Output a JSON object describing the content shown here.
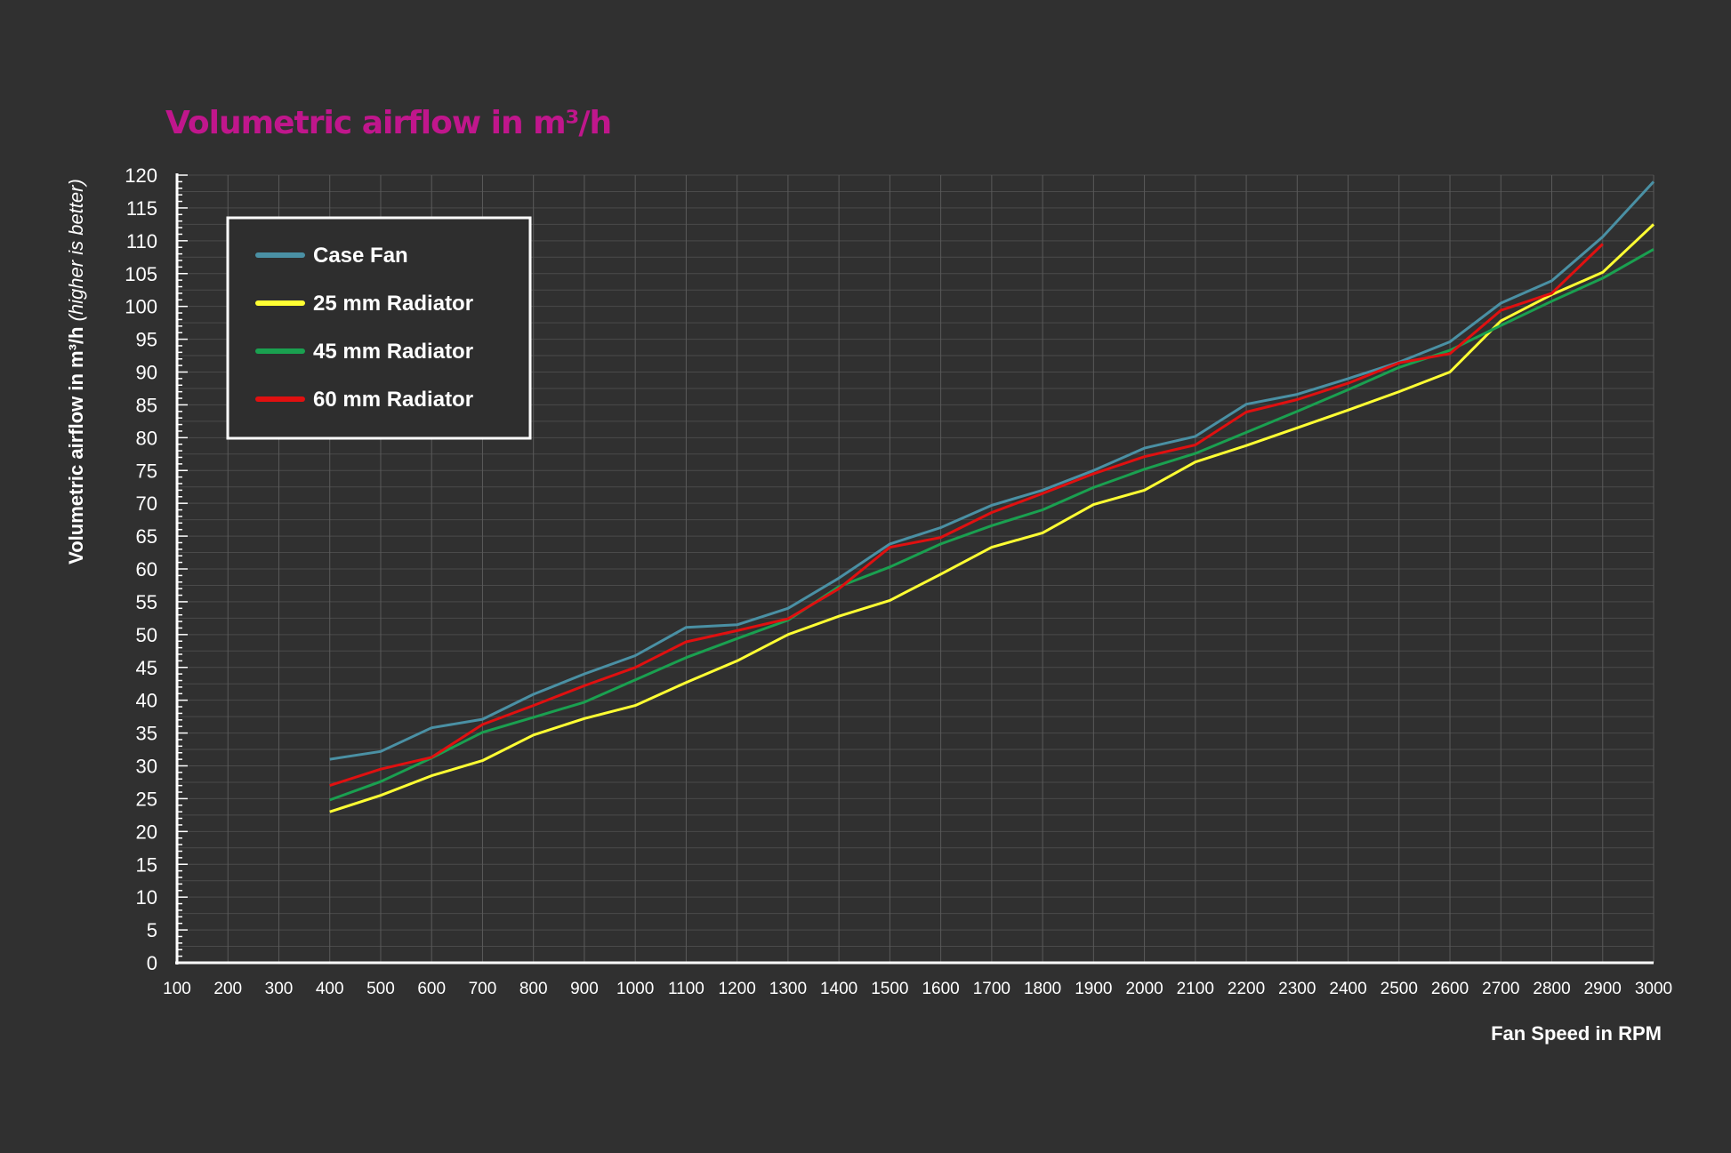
{
  "chart_data": {
    "type": "line",
    "title": "Volumetric airflow in m³/h",
    "xlabel": "Fan Speed in RPM",
    "ylabel_main": "Volumetric airflow in m³/h",
    "ylabel_suffix": "(higher is better)",
    "x": [
      100,
      200,
      300,
      400,
      500,
      600,
      700,
      800,
      900,
      1000,
      1100,
      1200,
      1300,
      1400,
      1500,
      1600,
      1700,
      1800,
      1900,
      2000,
      2100,
      2200,
      2300,
      2400,
      2500,
      2600,
      2700,
      2800,
      2900,
      3000
    ],
    "xlim": [
      100,
      3000
    ],
    "ylim": [
      0,
      120
    ],
    "yticks": [
      0,
      5,
      10,
      15,
      20,
      25,
      30,
      35,
      40,
      45,
      50,
      55,
      60,
      65,
      70,
      75,
      80,
      85,
      90,
      95,
      100,
      105,
      110,
      115,
      120
    ],
    "grid": true,
    "legend_position": "top-left",
    "title_color": "#c0168c",
    "series": [
      {
        "name": "Case Fan",
        "color": "#4a90a4",
        "x": [
          400,
          500,
          600,
          700,
          800,
          900,
          1000,
          1100,
          1200,
          1300,
          1400,
          1500,
          1600,
          1700,
          1800,
          1900,
          2000,
          2100,
          2200,
          2300,
          2400,
          2500,
          2600,
          2700,
          2800,
          2900,
          3000
        ],
        "values": [
          31,
          32.2,
          35.8,
          37.1,
          40.9,
          44,
          46.8,
          51.1,
          51.5,
          54,
          58.6,
          63.8,
          66.3,
          69.7,
          72,
          75,
          78.4,
          80.2,
          85.1,
          86.6,
          89,
          91.5,
          94.6,
          100.5,
          103.9,
          110.6,
          119
        ]
      },
      {
        "name": "25 mm Radiator",
        "color": "#ffff33",
        "x": [
          400,
          500,
          600,
          700,
          800,
          900,
          1000,
          1100,
          1200,
          1300,
          1400,
          1500,
          1600,
          1700,
          1800,
          1900,
          2000,
          2100,
          2200,
          2300,
          2400,
          2500,
          2600,
          2700,
          2800,
          2900,
          3000
        ],
        "values": [
          23,
          25.5,
          28.5,
          30.8,
          34.7,
          37.2,
          39.2,
          42.7,
          46,
          50,
          52.8,
          55.2,
          59.2,
          63.3,
          65.5,
          69.8,
          72,
          76.3,
          78.8,
          81.5,
          84.2,
          87,
          90,
          97.8,
          101.8,
          105.2,
          112.5
        ]
      },
      {
        "name": "45 mm Radiator",
        "color": "#1aa050",
        "x": [
          400,
          500,
          600,
          700,
          800,
          900,
          1000,
          1100,
          1200,
          1300,
          1400,
          1500,
          1600,
          1700,
          1800,
          1900,
          2000,
          2100,
          2200,
          2300,
          2400,
          2500,
          2600,
          2700,
          2800,
          2900,
          3000
        ],
        "values": [
          24.8,
          27.6,
          31.2,
          35.1,
          37.4,
          39.7,
          43.1,
          46.5,
          49.4,
          52.2,
          57.3,
          60.3,
          63.8,
          66.6,
          69,
          72.4,
          75.2,
          77.6,
          80.8,
          84,
          87.3,
          90.7,
          93.3,
          97.1,
          100.8,
          104.3,
          108.7
        ]
      },
      {
        "name": "60 mm Radiator",
        "color": "#e01010",
        "x": [
          400,
          500,
          600,
          700,
          800,
          900,
          1000,
          1100,
          1200,
          1300,
          1400,
          1500,
          1600,
          1700,
          1800,
          1900,
          2000,
          2100,
          2200,
          2300,
          2400,
          2500,
          2600,
          2700,
          2800,
          2900
        ],
        "values": [
          27,
          29.5,
          31.3,
          36.3,
          39.2,
          42.2,
          45,
          48.9,
          50.6,
          52.4,
          57,
          63.3,
          64.8,
          68.6,
          71.5,
          74.5,
          77.1,
          78.9,
          83.9,
          85.8,
          88.3,
          91.4,
          92.8,
          99.4,
          102,
          109.5
        ]
      }
    ]
  }
}
